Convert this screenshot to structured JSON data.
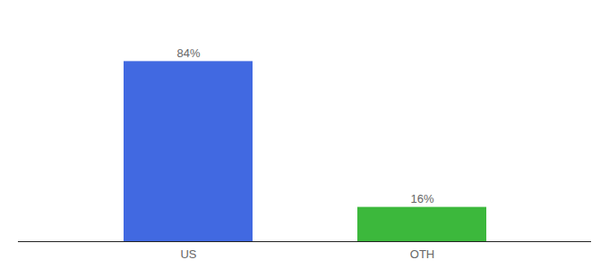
{
  "chart_data": {
    "type": "bar",
    "categories": [
      "US",
      "OTH"
    ],
    "values": [
      84,
      16
    ],
    "value_labels": [
      "84%",
      "16%"
    ],
    "colors": [
      "#4169e1",
      "#3cb83c"
    ],
    "ylim": [
      0,
      100
    ],
    "data_labels": true,
    "tick_labels": "x"
  }
}
